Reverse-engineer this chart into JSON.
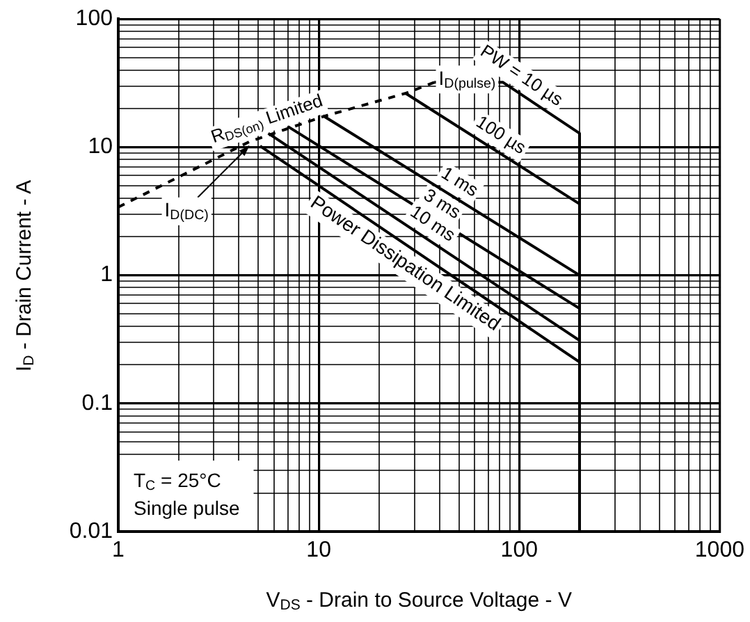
{
  "chart_data": {
    "type": "line",
    "xlabel": "V$_{DS}$ - Drain to Source Voltage - V",
    "ylabel": "I$_{D}$ - Drain Current - A",
    "log": "xy",
    "grid": true,
    "legend": false,
    "marker": "none",
    "xlim": [
      1,
      1000
    ],
    "ylim": [
      0.01,
      100
    ],
    "xticks": [
      1,
      {
        "value": 2,
        "label": null
      },
      {
        "value": 3,
        "label": null
      },
      {
        "value": 4,
        "label": null
      },
      {
        "value": 5,
        "label": null
      },
      {
        "value": 6,
        "label": null
      },
      {
        "value": 7,
        "label": null
      },
      {
        "value": 8,
        "label": null
      },
      {
        "value": 9,
        "label": null
      },
      10,
      {
        "value": 20,
        "label": null
      },
      {
        "value": 30,
        "label": null
      },
      {
        "value": 40,
        "label": null
      },
      {
        "value": 50,
        "label": null
      },
      {
        "value": 60,
        "label": null
      },
      {
        "value": 70,
        "label": null
      },
      {
        "value": 80,
        "label": null
      },
      {
        "value": 90,
        "label": null
      },
      100,
      {
        "value": 200,
        "label": null
      },
      {
        "value": 300,
        "label": null
      },
      {
        "value": 400,
        "label": null
      },
      {
        "value": 500,
        "label": null
      },
      {
        "value": 600,
        "label": null
      },
      {
        "value": 700,
        "label": null
      },
      {
        "value": 800,
        "label": null
      },
      {
        "value": 900,
        "label": null
      },
      1000
    ],
    "yticks": [
      0.01,
      {
        "value": 0.02,
        "label": null
      },
      {
        "value": 0.03,
        "label": null
      },
      {
        "value": 0.04,
        "label": null
      },
      {
        "value": 0.05,
        "label": null
      },
      {
        "value": 0.06,
        "label": null
      },
      {
        "value": 0.07,
        "label": null
      },
      {
        "value": 0.08,
        "label": null
      },
      {
        "value": 0.09,
        "label": null
      },
      0.1,
      {
        "value": 0.2,
        "label": null
      },
      {
        "value": 0.3,
        "label": null
      },
      {
        "value": 0.4,
        "label": null
      },
      {
        "value": 0.5,
        "label": null
      },
      {
        "value": 0.6,
        "label": null
      },
      {
        "value": 0.7,
        "label": null
      },
      {
        "value": 0.8,
        "label": null
      },
      {
        "value": 0.9,
        "label": null
      },
      1,
      {
        "value": 2,
        "label": null
      },
      {
        "value": 3,
        "label": null
      },
      {
        "value": 4,
        "label": null
      },
      {
        "value": 5,
        "label": null
      },
      {
        "value": 6,
        "label": null
      },
      {
        "value": 7,
        "label": null
      },
      {
        "value": 8,
        "label": null
      },
      {
        "value": 9,
        "label": null
      },
      10,
      {
        "value": 20,
        "label": null
      },
      {
        "value": 30,
        "label": null
      },
      {
        "value": 40,
        "label": null
      },
      {
        "value": 50,
        "label": null
      },
      {
        "value": 60,
        "label": null
      },
      {
        "value": 70,
        "label": null
      },
      {
        "value": 80,
        "label": null
      },
      {
        "value": 90,
        "label": null
      },
      100
    ],
    "series": [
      {
        "name": "R$_{DS(on)}$ Limited",
        "color": "#000000",
        "line_style": "dashed",
        "x": [
          1,
          4.5,
          10.5,
          27.4,
          37.7
        ],
        "values": [
          3.4,
          11,
          17.3,
          26.4,
          32
        ]
      },
      {
        "name": "PW = 10 µs",
        "color": "#000000",
        "x": [
          37.7,
          83,
          200
        ],
        "values": [
          32,
          32,
          12.8
        ]
      },
      {
        "color": "#000000",
        "x": [
          200,
          200
        ],
        "values": [
          12.8,
          0.01
        ]
      },
      {
        "name": "100 µs",
        "color": "#000000",
        "x": [
          27,
          200
        ],
        "values": [
          26.4,
          3.6
        ]
      },
      {
        "name": "1 ms",
        "color": "#000000",
        "x": [
          10.5,
          200
        ],
        "values": [
          17.6,
          1
        ]
      },
      {
        "name": "3 ms",
        "color": "#000000",
        "x": [
          7,
          200
        ],
        "values": [
          14.5,
          0.55
        ]
      },
      {
        "name": "10 ms",
        "color": "#000000",
        "x": [
          5.6,
          200
        ],
        "values": [
          12.8,
          0.31
        ]
      },
      {
        "color": "#000000",
        "x": [
          5.1,
          200
        ],
        "values": [
          10.2,
          0.21
        ]
      }
    ],
    "annotations": [
      {
        "text": "I$_{D(pulse)}$",
        "x": 55,
        "y": 32
      },
      {
        "text": "I$_{D(DC)}$",
        "x": 4.5,
        "y": 11
      },
      {
        "text": "Power Dissipation Limited",
        "x": 30,
        "y": 1.57
      },
      "T$_{C}$ = 25°C\nSingle pulse"
    ]
  }
}
